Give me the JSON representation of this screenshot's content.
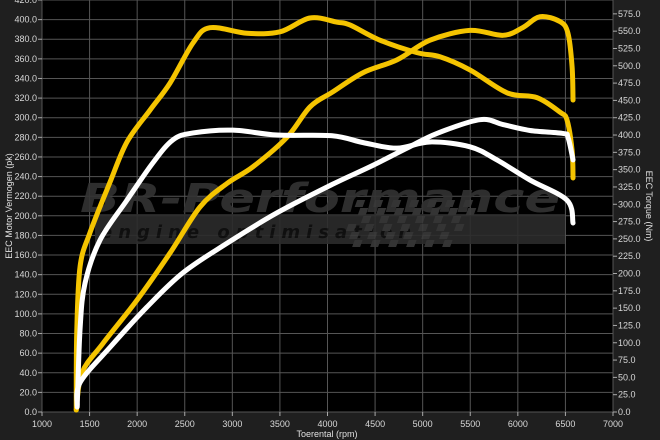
{
  "chart_data": {
    "type": "line",
    "title": "",
    "xlabel": "Toerental (rpm)",
    "ylabel_left": "EEC Motor Vermogen (pk)",
    "ylabel_right": "EEC Torque (Nm)",
    "xlim": [
      1000,
      7000
    ],
    "ylim_left": [
      0,
      420
    ],
    "ylim_right": [
      0,
      595
    ],
    "x_ticks": [
      1000,
      1500,
      2000,
      2500,
      3000,
      3500,
      4000,
      4500,
      5000,
      5500,
      6000,
      6500,
      7000
    ],
    "y_left_ticks": [
      "0.0",
      "20.0",
      "40.0",
      "60.0",
      "80.0",
      "100.0",
      "120.0",
      "140.0",
      "160.0",
      "180.0",
      "200.0",
      "220.0",
      "240.0",
      "260.0",
      "280.0",
      "300.0",
      "320.0",
      "340.0",
      "360.0",
      "380.0",
      "400.0",
      "420.0"
    ],
    "y_right_ticks": [
      "0.0",
      "25.0",
      "50.0",
      "75.0",
      "100.0",
      "125.0",
      "150.0",
      "175.0",
      "200.0",
      "225.0",
      "250.0",
      "275.0",
      "300.0",
      "325.0",
      "350.0",
      "375.0",
      "400.0",
      "425.0",
      "450.0",
      "475.0",
      "500.0",
      "525.0",
      "550.0",
      "575.0"
    ],
    "grid": true,
    "background": "#000000",
    "series": [
      {
        "axis": "right",
        "color": "#f5c400",
        "points": [
          [
            1360,
            3
          ],
          [
            1365,
            114
          ],
          [
            1400,
            210
          ],
          [
            1504,
            259
          ],
          [
            1715,
            332
          ],
          [
            1893,
            390
          ],
          [
            2135,
            436
          ],
          [
            2345,
            475
          ],
          [
            2587,
            533
          ],
          [
            2765,
            555
          ],
          [
            3154,
            547
          ],
          [
            3500,
            549
          ],
          [
            3816,
            569
          ],
          [
            4100,
            563
          ],
          [
            4236,
            559
          ],
          [
            4551,
            537
          ],
          [
            4940,
            519
          ],
          [
            5182,
            513
          ],
          [
            5497,
            494
          ],
          [
            5886,
            461
          ],
          [
            6201,
            454
          ],
          [
            6443,
            433
          ],
          [
            6516,
            422
          ],
          [
            6570,
            378
          ],
          [
            6580,
            338
          ]
        ]
      },
      {
        "axis": "left",
        "color": "#f5c400",
        "points": [
          [
            1360,
            2
          ],
          [
            1420,
            40
          ],
          [
            1641,
            70
          ],
          [
            1998,
            114
          ],
          [
            2345,
            162
          ],
          [
            2660,
            209
          ],
          [
            2944,
            233
          ],
          [
            3217,
            250
          ],
          [
            3574,
            280
          ],
          [
            3816,
            311
          ],
          [
            4050,
            326
          ],
          [
            4375,
            346
          ],
          [
            4730,
            359
          ],
          [
            5077,
            379
          ],
          [
            5497,
            389
          ],
          [
            5844,
            384
          ],
          [
            6054,
            392
          ],
          [
            6233,
            403
          ],
          [
            6443,
            398
          ],
          [
            6527,
            386
          ],
          [
            6570,
            352
          ],
          [
            6580,
            318
          ]
        ]
      },
      {
        "axis": "right",
        "color": "#ffffff",
        "points": [
          [
            1370,
            10
          ],
          [
            1400,
            120
          ],
          [
            1452,
            186
          ],
          [
            1609,
            248
          ],
          [
            1893,
            306
          ],
          [
            2166,
            360
          ],
          [
            2376,
            393
          ],
          [
            2587,
            403
          ],
          [
            3007,
            407
          ],
          [
            3469,
            400
          ],
          [
            4050,
            399
          ],
          [
            4375,
            389
          ],
          [
            4730,
            381
          ],
          [
            5077,
            390
          ],
          [
            5497,
            383
          ],
          [
            5781,
            364
          ],
          [
            6128,
            335
          ],
          [
            6516,
            306
          ],
          [
            6580,
            273
          ]
        ]
      },
      {
        "axis": "left",
        "color": "#ffffff",
        "points": [
          [
            1370,
            5
          ],
          [
            1400,
            30
          ],
          [
            1715,
            66
          ],
          [
            2103,
            107
          ],
          [
            2482,
            142
          ],
          [
            2944,
            172
          ],
          [
            3469,
            203
          ],
          [
            4050,
            232
          ],
          [
            4446,
            250
          ],
          [
            4835,
            269
          ],
          [
            5150,
            284
          ],
          [
            5602,
            298
          ],
          [
            5844,
            293
          ],
          [
            6128,
            287
          ],
          [
            6474,
            284
          ],
          [
            6527,
            280
          ],
          [
            6580,
            257
          ]
        ]
      }
    ]
  },
  "watermark": {
    "brand": "BR-Performance",
    "tagline": "engine optimisation"
  }
}
